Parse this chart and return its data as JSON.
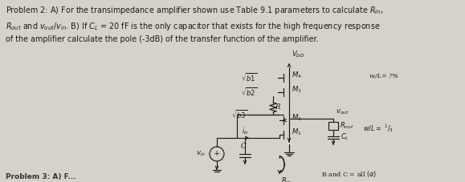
{
  "background_color": "#d6d2ca",
  "text_color": "#1a1a1a",
  "fig_width": 5.79,
  "fig_height": 2.27,
  "dpi": 100,
  "problem_text_line1": "Problem 2: A) For the transimpedance amplifier shown use Table 9.1 parameters to calculate R",
  "problem_text_line2": "and v",
  "problem_text_line3": "of the amplifier calculate the pole (-3dB) of the transfer function of the amplifier."
}
